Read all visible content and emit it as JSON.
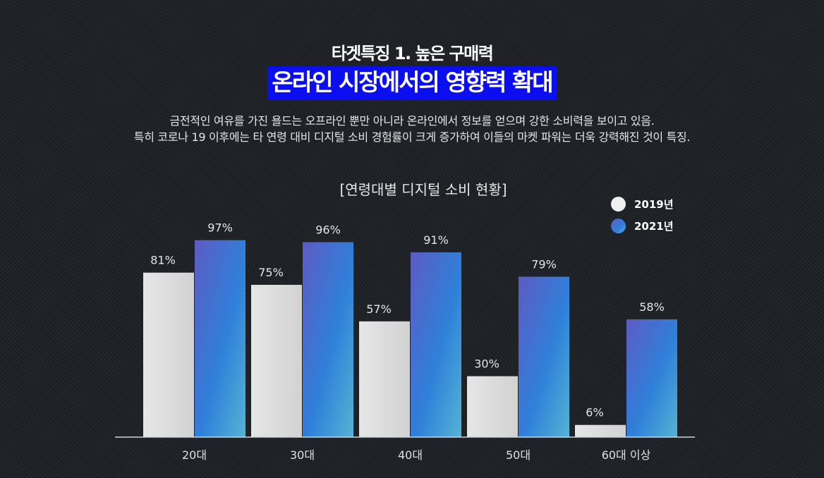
{
  "header": {
    "subtitle": "타겟특징 1. 높은 구매력",
    "headline": "온라인 시장에서의 영향력 확대",
    "description": [
      "금전적인 여유를 가진 욜드는 오프라인 뿐만 아니라 온라인에서 정보를 얻으며 강한 소비력을 보이고 있음.",
      "특히 코로나 19 이후에는 타 연령 대비 디지털 소비 경험률이 크게 증가하여 이들의 마켓 파워는 더욱 강력해진 것이 특징."
    ]
  },
  "chart_data": {
    "type": "bar",
    "title": "[연령대별 디지털 소비 현황]",
    "categories": [
      "20대",
      "30대",
      "40대",
      "50대",
      "60대 이상"
    ],
    "series": [
      {
        "name": "2019년",
        "values": [
          81,
          75,
          57,
          30,
          6
        ],
        "labels": [
          "81%",
          "75%",
          "57%",
          "30%",
          "6%"
        ],
        "color": "#dedede"
      },
      {
        "name": "2021년",
        "values": [
          97,
          96,
          91,
          79,
          58
        ],
        "labels": [
          "97%",
          "96%",
          "91%",
          "79%",
          "58%"
        ],
        "color": "#3e6fd6"
      }
    ],
    "ylim": [
      0,
      100
    ],
    "grid": false,
    "legend_position": "top-right"
  }
}
